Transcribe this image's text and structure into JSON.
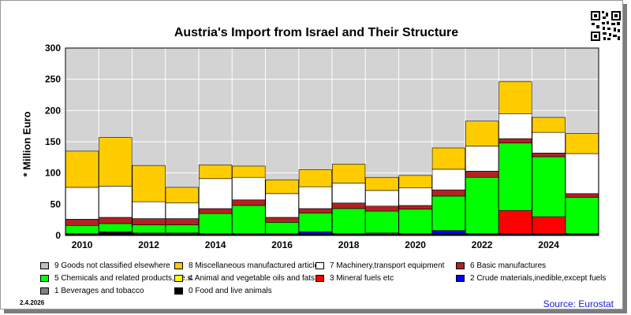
{
  "title": "Austria's Import from Israel and Their Structure",
  "source": "Source: Eurostat",
  "date": "2.4.2026",
  "chart_data": {
    "type": "bar",
    "stacked": true,
    "title": "Austria's Import from Israel and Their Structure",
    "xlabel": "",
    "ylabel": "* Million Euro",
    "ylim": [
      0,
      300
    ],
    "yticks": [
      0,
      50,
      100,
      150,
      200,
      250,
      300
    ],
    "xtick_labels": [
      "2010",
      "2012",
      "2014",
      "2016",
      "2018",
      "2020",
      "2022",
      "2024"
    ],
    "grid": "horizontal",
    "plot_background": "#d3d3d3",
    "categories": [
      "2010",
      "2011",
      "2012",
      "2013",
      "2014",
      "2015",
      "2016",
      "2017",
      "2018",
      "2019",
      "2020",
      "2021",
      "2022",
      "2023",
      "2024",
      "2025"
    ],
    "series": [
      {
        "name": "0 Food and live animals",
        "color": "#000000",
        "values": [
          2,
          5,
          3,
          3,
          2,
          2,
          2,
          2,
          2,
          2,
          2,
          2,
          2,
          2,
          2,
          2
        ]
      },
      {
        "name": "1 Beverages and tobacco",
        "color": "#808080",
        "values": [
          0,
          0,
          0,
          0,
          0,
          0,
          0,
          0,
          0,
          0,
          0,
          0,
          0,
          0,
          0,
          0
        ]
      },
      {
        "name": "2 Crude materials,inedible,except fuels",
        "color": "#0000ff",
        "values": [
          1,
          1,
          1,
          1,
          1,
          1,
          1,
          4,
          1,
          2,
          1,
          6,
          1,
          1,
          1,
          1
        ]
      },
      {
        "name": "3 Mineral fuels etc",
        "color": "#ff0000",
        "values": [
          0,
          0,
          0,
          0,
          0,
          0,
          0,
          0,
          0,
          0,
          0,
          0,
          0,
          37,
          27,
          0
        ]
      },
      {
        "name": "4 Animal and vegetable oils and fats",
        "color": "#ffff00",
        "values": [
          0,
          0,
          0,
          0,
          0,
          0,
          0,
          0,
          0,
          0,
          0,
          0,
          0,
          0,
          0,
          0
        ]
      },
      {
        "name": "5 Chemicals and related products,n.e.s.",
        "color": "#00ff00",
        "values": [
          13,
          13,
          13,
          13,
          32,
          45,
          18,
          30,
          40,
          35,
          39,
          55,
          90,
          108,
          96,
          58
        ]
      },
      {
        "name": "6 Basic manufactures",
        "color": "#b22222",
        "values": [
          10,
          10,
          10,
          10,
          8,
          9,
          8,
          7,
          9,
          8,
          6,
          10,
          10,
          7,
          6,
          6
        ]
      },
      {
        "name": "7 Machinery,transport equipment",
        "color": "#ffffff",
        "values": [
          51,
          50,
          27,
          25,
          48,
          36,
          38,
          35,
          32,
          25,
          28,
          33,
          40,
          40,
          33,
          64
        ]
      },
      {
        "name": "8 Miscellaneous manufactured articles",
        "color": "#ffcc00",
        "values": [
          58,
          78,
          58,
          25,
          22,
          18,
          22,
          27,
          30,
          21,
          20,
          34,
          40,
          51,
          24,
          32
        ]
      },
      {
        "name": "9 Goods not classified elsewhere",
        "color": "#c0c0c0",
        "values": [
          0,
          0,
          0,
          0,
          0,
          0,
          0,
          0,
          0,
          0,
          0,
          0,
          0,
          0,
          0,
          0
        ]
      }
    ],
    "legend_position": "bottom"
  }
}
